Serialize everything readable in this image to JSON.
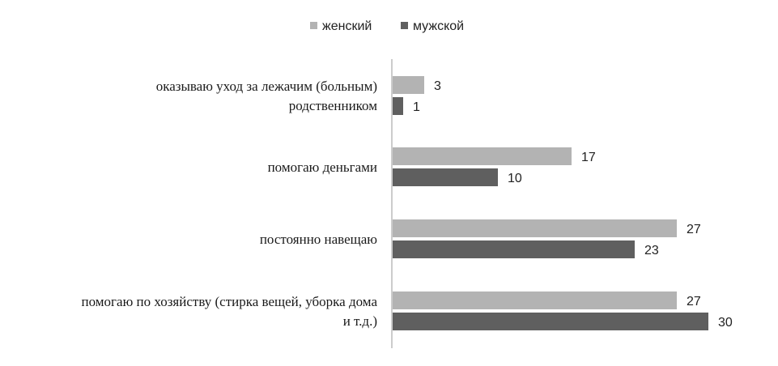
{
  "chart_data": {
    "type": "bar",
    "orientation": "horizontal",
    "categories": [
      [
        "оказываю уход за лежачим (больным)",
        "родственником"
      ],
      [
        "помогаю деньгами"
      ],
      [
        "постоянно навещаю"
      ],
      [
        "помогаю по хозяйству (стирка вещей, уборка дома",
        "и т.д.)"
      ]
    ],
    "series": [
      {
        "name": "женский",
        "color": "#b3b3b3",
        "values": [
          3,
          17,
          27,
          27
        ]
      },
      {
        "name": "мужской",
        "color": "#5f5f5f",
        "values": [
          1,
          10,
          23,
          30
        ]
      }
    ],
    "xlim": [
      0,
      33
    ],
    "legend": "top-center",
    "grid": false,
    "axis_color": "#9a9a9a"
  }
}
